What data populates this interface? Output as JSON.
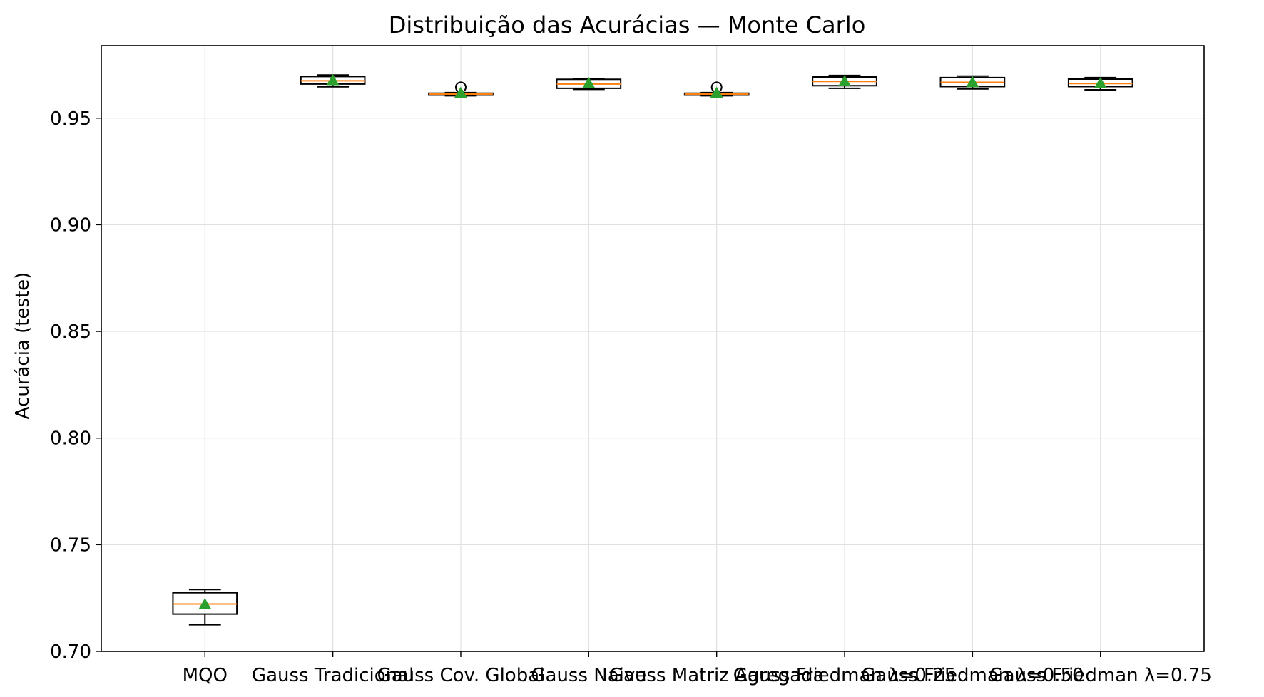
{
  "chart_data": {
    "type": "box",
    "title": "Distribuição das Acurácias — Monte Carlo",
    "xlabel": "",
    "ylabel": "Acurácia (teste)",
    "ylim": [
      0.7,
      0.984
    ],
    "yticks": [
      "0.70",
      "0.75",
      "0.80",
      "0.85",
      "0.90",
      "0.95"
    ],
    "grid": true,
    "colors": {
      "median": "#ff7f0e",
      "mean": "#2ca02c",
      "box": "#000000",
      "grid": "#e0e0e0"
    },
    "categories": [
      "MQO",
      "Gauss Tradicional",
      "Gauss Cov. Global",
      "Gauss Naive",
      "Gauss Matriz Agregada",
      "Gauss Friedman λ=0.25",
      "Gauss Friedman λ=0.50",
      "Gauss Friedman λ=0.75"
    ],
    "boxes": [
      {
        "whislo": 0.7125,
        "q1": 0.7175,
        "med": 0.7222,
        "q3": 0.7275,
        "whishi": 0.729,
        "mean": 0.722,
        "fliers": []
      },
      {
        "whislo": 0.9647,
        "q1": 0.966,
        "med": 0.9675,
        "q3": 0.9695,
        "whishi": 0.9702,
        "mean": 0.9677,
        "fliers": []
      },
      {
        "whislo": 0.9605,
        "q1": 0.9608,
        "med": 0.9613,
        "q3": 0.9617,
        "whishi": 0.962,
        "mean": 0.9618,
        "fliers": [
          0.9645
        ]
      },
      {
        "whislo": 0.9635,
        "q1": 0.964,
        "med": 0.966,
        "q3": 0.9682,
        "whishi": 0.9686,
        "mean": 0.9663,
        "fliers": []
      },
      {
        "whislo": 0.9605,
        "q1": 0.9608,
        "med": 0.9613,
        "q3": 0.9617,
        "whishi": 0.962,
        "mean": 0.9618,
        "fliers": [
          0.9645
        ]
      },
      {
        "whislo": 0.964,
        "q1": 0.9652,
        "med": 0.9672,
        "q3": 0.9693,
        "whishi": 0.97,
        "mean": 0.9672,
        "fliers": []
      },
      {
        "whislo": 0.9637,
        "q1": 0.9648,
        "med": 0.9668,
        "q3": 0.969,
        "whishi": 0.9697,
        "mean": 0.9668,
        "fliers": []
      },
      {
        "whislo": 0.9633,
        "q1": 0.9648,
        "med": 0.9662,
        "q3": 0.9683,
        "whishi": 0.969,
        "mean": 0.9663,
        "fliers": []
      }
    ]
  }
}
